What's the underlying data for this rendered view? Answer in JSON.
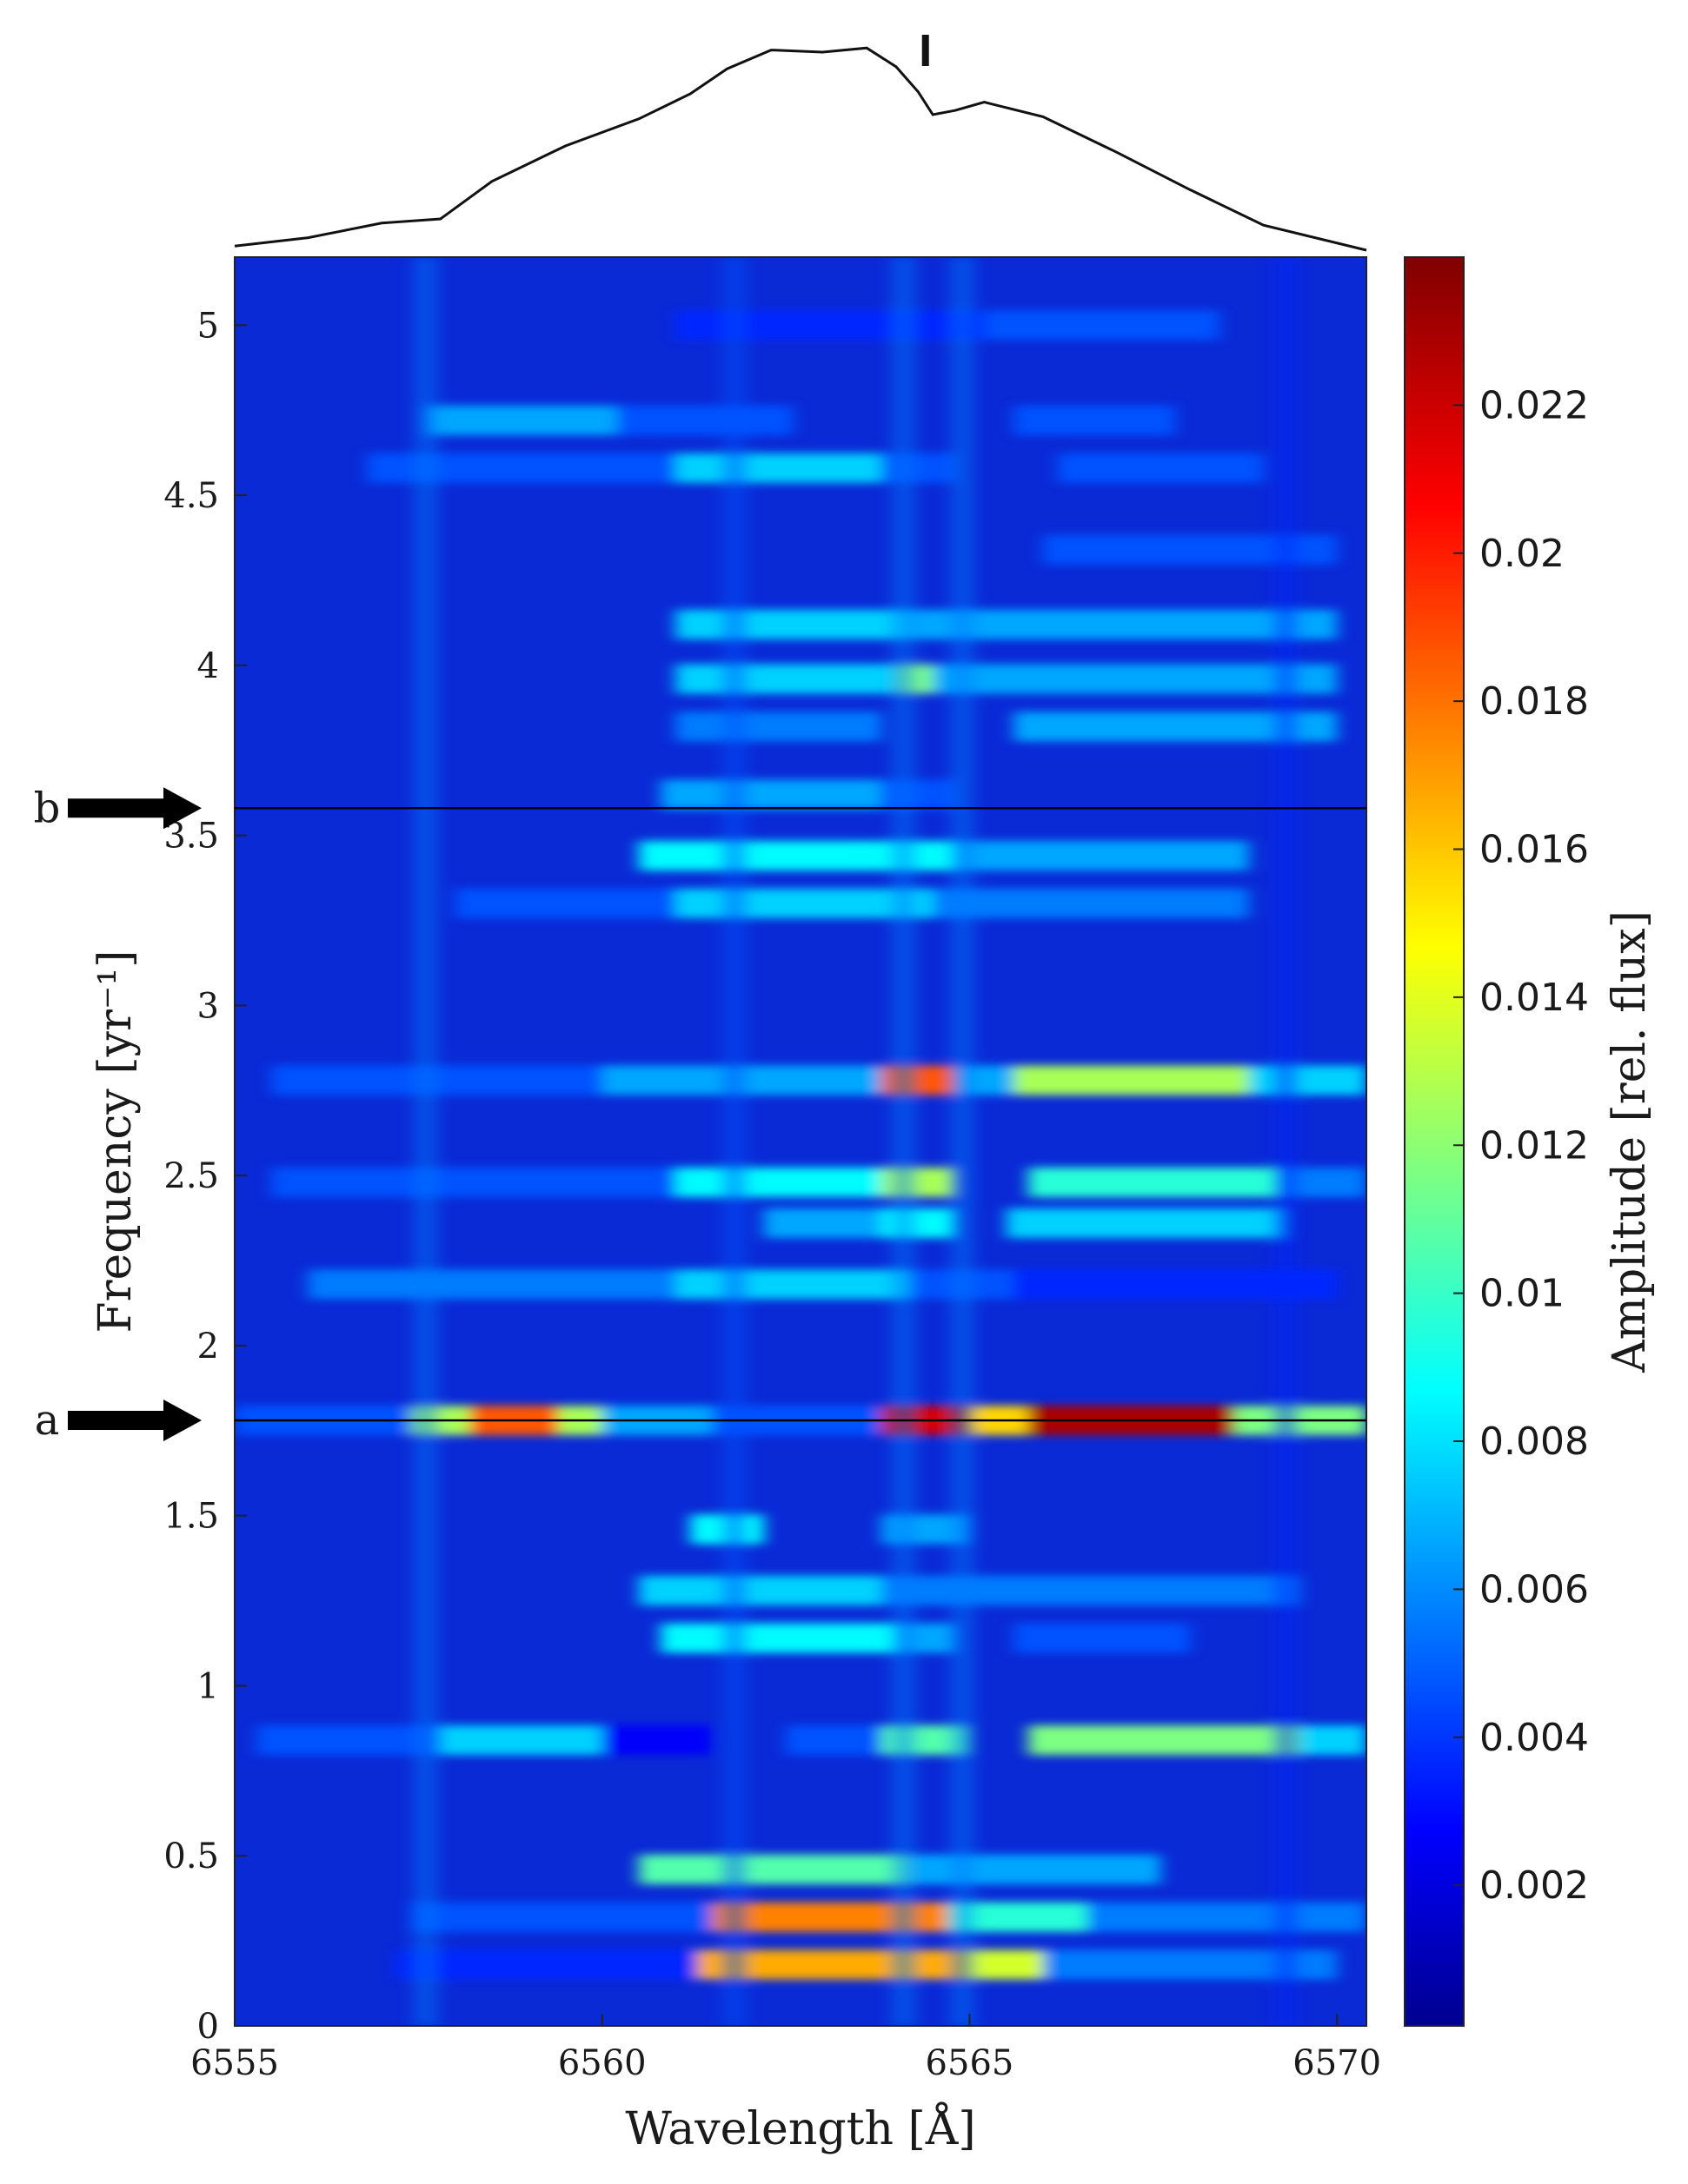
{
  "chart_data": {
    "type": "heatmap",
    "title": "",
    "xlabel": "Wavelength [Å]",
    "ylabel": "Frequency [yr⁻¹]",
    "colorbar_label": "Amplitude [rel. flux]",
    "colormap": "jet",
    "xlim": [
      6555,
      6570.4
    ],
    "ylim": [
      0,
      5.2
    ],
    "clim": [
      0.0001,
      0.024
    ],
    "x_ticks": [
      "6555",
      "6560",
      "6565",
      "6570"
    ],
    "y_ticks": [
      "0",
      "0.5",
      "1",
      "1.5",
      "2",
      "2.5",
      "3",
      "3.5",
      "4",
      "4.5",
      "5"
    ],
    "colorbar_ticks": [
      "0.002",
      "0.004",
      "0.006",
      "0.008",
      "0.01",
      "0.012",
      "0.014",
      "0.016",
      "0.018",
      "0.02",
      "0.022"
    ],
    "markers": [
      {
        "label": "a",
        "frequency": 1.78
      },
      {
        "label": "b",
        "frequency": 3.58
      }
    ],
    "line_marker_wavelength": 6564.4,
    "bands": [
      {
        "frequency": 1.78,
        "segments": [
          [
            6555.0,
            6557.4,
            0.005
          ],
          [
            6557.4,
            6558.2,
            0.013
          ],
          [
            6558.2,
            6559.4,
            0.019
          ],
          [
            6559.4,
            6560.0,
            0.013
          ],
          [
            6560.0,
            6561.5,
            0.007
          ],
          [
            6561.5,
            6563.8,
            0.005
          ],
          [
            6563.8,
            6565.0,
            0.022
          ],
          [
            6565.0,
            6565.8,
            0.016
          ],
          [
            6565.8,
            6568.6,
            0.023
          ],
          [
            6568.6,
            6570.4,
            0.012
          ]
        ]
      },
      {
        "frequency": 0.18,
        "segments": [
          [
            6557.2,
            6561.3,
            0.004
          ],
          [
            6561.3,
            6565.0,
            0.017
          ],
          [
            6565.0,
            6566.0,
            0.014
          ],
          [
            6566.0,
            6570.0,
            0.006
          ]
        ]
      },
      {
        "frequency": 0.32,
        "segments": [
          [
            6557.4,
            6561.5,
            0.005
          ],
          [
            6561.5,
            6564.7,
            0.018
          ],
          [
            6564.7,
            6566.6,
            0.01
          ],
          [
            6566.6,
            6570.4,
            0.006
          ]
        ]
      },
      {
        "frequency": 0.46,
        "segments": [
          [
            6560.5,
            6564.2,
            0.011
          ],
          [
            6564.2,
            6567.6,
            0.007
          ]
        ]
      },
      {
        "frequency": 0.84,
        "segments": [
          [
            6555.3,
            6557.8,
            0.005
          ],
          [
            6557.8,
            6560.0,
            0.008
          ],
          [
            6560.0,
            6561.5,
            0.003
          ],
          [
            6562.5,
            6563.8,
            0.005
          ],
          [
            6563.8,
            6565.0,
            0.011
          ],
          [
            6565.8,
            6569.5,
            0.012
          ],
          [
            6569.5,
            6570.4,
            0.008
          ]
        ]
      },
      {
        "frequency": 1.14,
        "segments": [
          [
            6560.8,
            6564.0,
            0.009
          ],
          [
            6564.0,
            6564.8,
            0.007
          ],
          [
            6565.6,
            6568.0,
            0.005
          ]
        ]
      },
      {
        "frequency": 1.28,
        "segments": [
          [
            6560.5,
            6563.8,
            0.008
          ],
          [
            6563.8,
            6565.0,
            0.006
          ],
          [
            6565.0,
            6569.5,
            0.006
          ]
        ]
      },
      {
        "frequency": 1.46,
        "segments": [
          [
            6561.2,
            6562.2,
            0.009
          ],
          [
            6563.8,
            6565.0,
            0.007
          ]
        ]
      },
      {
        "frequency": 2.18,
        "segments": [
          [
            6556.0,
            6561.0,
            0.006
          ],
          [
            6561.0,
            6564.2,
            0.008
          ],
          [
            6564.2,
            6565.6,
            0.005
          ],
          [
            6565.6,
            6570.0,
            0.004
          ]
        ]
      },
      {
        "frequency": 2.36,
        "segments": [
          [
            6562.2,
            6563.8,
            0.007
          ],
          [
            6563.8,
            6564.8,
            0.009
          ],
          [
            6565.5,
            6569.3,
            0.008
          ]
        ]
      },
      {
        "frequency": 2.48,
        "segments": [
          [
            6555.5,
            6561.0,
            0.005
          ],
          [
            6561.0,
            6563.8,
            0.009
          ],
          [
            6563.8,
            6564.8,
            0.013
          ],
          [
            6565.8,
            6569.2,
            0.01
          ],
          [
            6569.2,
            6570.4,
            0.006
          ]
        ]
      },
      {
        "frequency": 2.78,
        "segments": [
          [
            6555.5,
            6560.0,
            0.005
          ],
          [
            6560.0,
            6563.8,
            0.007
          ],
          [
            6563.8,
            6564.8,
            0.019
          ],
          [
            6564.8,
            6565.6,
            0.007
          ],
          [
            6565.6,
            6568.8,
            0.013
          ],
          [
            6568.8,
            6570.4,
            0.008
          ]
        ]
      },
      {
        "frequency": 3.3,
        "segments": [
          [
            6558.0,
            6561.0,
            0.005
          ],
          [
            6561.0,
            6564.5,
            0.008
          ],
          [
            6564.5,
            6568.8,
            0.006
          ]
        ]
      },
      {
        "frequency": 3.44,
        "segments": [
          [
            6560.5,
            6563.5,
            0.009
          ],
          [
            6563.5,
            6564.8,
            0.009
          ],
          [
            6564.8,
            6568.8,
            0.007
          ]
        ]
      },
      {
        "frequency": 3.62,
        "segments": [
          [
            6560.8,
            6563.8,
            0.007
          ],
          [
            6563.8,
            6564.8,
            0.005
          ]
        ]
      },
      {
        "frequency": 3.82,
        "segments": [
          [
            6561.0,
            6563.8,
            0.006
          ],
          [
            6565.6,
            6570.0,
            0.007
          ]
        ]
      },
      {
        "frequency": 3.96,
        "segments": [
          [
            6561.0,
            6564.0,
            0.008
          ],
          [
            6564.0,
            6564.5,
            0.012
          ],
          [
            6564.5,
            6570.0,
            0.007
          ]
        ]
      },
      {
        "frequency": 4.12,
        "segments": [
          [
            6561.0,
            6564.2,
            0.008
          ],
          [
            6564.2,
            6570.0,
            0.007
          ]
        ]
      },
      {
        "frequency": 4.34,
        "segments": [
          [
            6566.0,
            6570.0,
            0.005
          ]
        ]
      },
      {
        "frequency": 4.58,
        "segments": [
          [
            6556.8,
            6561.0,
            0.005
          ],
          [
            6561.0,
            6563.8,
            0.008
          ],
          [
            6563.8,
            6564.8,
            0.005
          ],
          [
            6566.2,
            6569.0,
            0.005
          ]
        ]
      },
      {
        "frequency": 4.72,
        "segments": [
          [
            6557.6,
            6560.2,
            0.007
          ],
          [
            6560.2,
            6562.6,
            0.005
          ],
          [
            6565.6,
            6567.8,
            0.005
          ]
        ]
      },
      {
        "frequency": 5.0,
        "segments": [
          [
            6561.0,
            6565.2,
            0.004
          ],
          [
            6565.2,
            6568.4,
            0.005
          ]
        ]
      }
    ],
    "columns": [
      {
        "wavelength": 6557.6,
        "value": 0.006
      },
      {
        "wavelength": 6561.8,
        "value": 0.005
      },
      {
        "wavelength": 6564.1,
        "value": 0.006
      },
      {
        "wavelength": 6564.9,
        "value": 0.006
      },
      {
        "wavelength": 6569.3,
        "value": 0.004
      }
    ],
    "profile": [
      {
        "x": 6555.0,
        "y": 0.02
      },
      {
        "x": 6556.0,
        "y": 0.06
      },
      {
        "x": 6557.0,
        "y": 0.13
      },
      {
        "x": 6557.8,
        "y": 0.15
      },
      {
        "x": 6558.5,
        "y": 0.33
      },
      {
        "x": 6559.5,
        "y": 0.5
      },
      {
        "x": 6560.5,
        "y": 0.63
      },
      {
        "x": 6561.2,
        "y": 0.75
      },
      {
        "x": 6561.7,
        "y": 0.87
      },
      {
        "x": 6562.3,
        "y": 0.96
      },
      {
        "x": 6563.0,
        "y": 0.95
      },
      {
        "x": 6563.6,
        "y": 0.97
      },
      {
        "x": 6564.0,
        "y": 0.88
      },
      {
        "x": 6564.3,
        "y": 0.76
      },
      {
        "x": 6564.5,
        "y": 0.65
      },
      {
        "x": 6564.8,
        "y": 0.67
      },
      {
        "x": 6565.2,
        "y": 0.71
      },
      {
        "x": 6566.0,
        "y": 0.64
      },
      {
        "x": 6567.0,
        "y": 0.47
      },
      {
        "x": 6568.0,
        "y": 0.29
      },
      {
        "x": 6569.0,
        "y": 0.12
      },
      {
        "x": 6570.4,
        "y": 0.0
      }
    ]
  }
}
